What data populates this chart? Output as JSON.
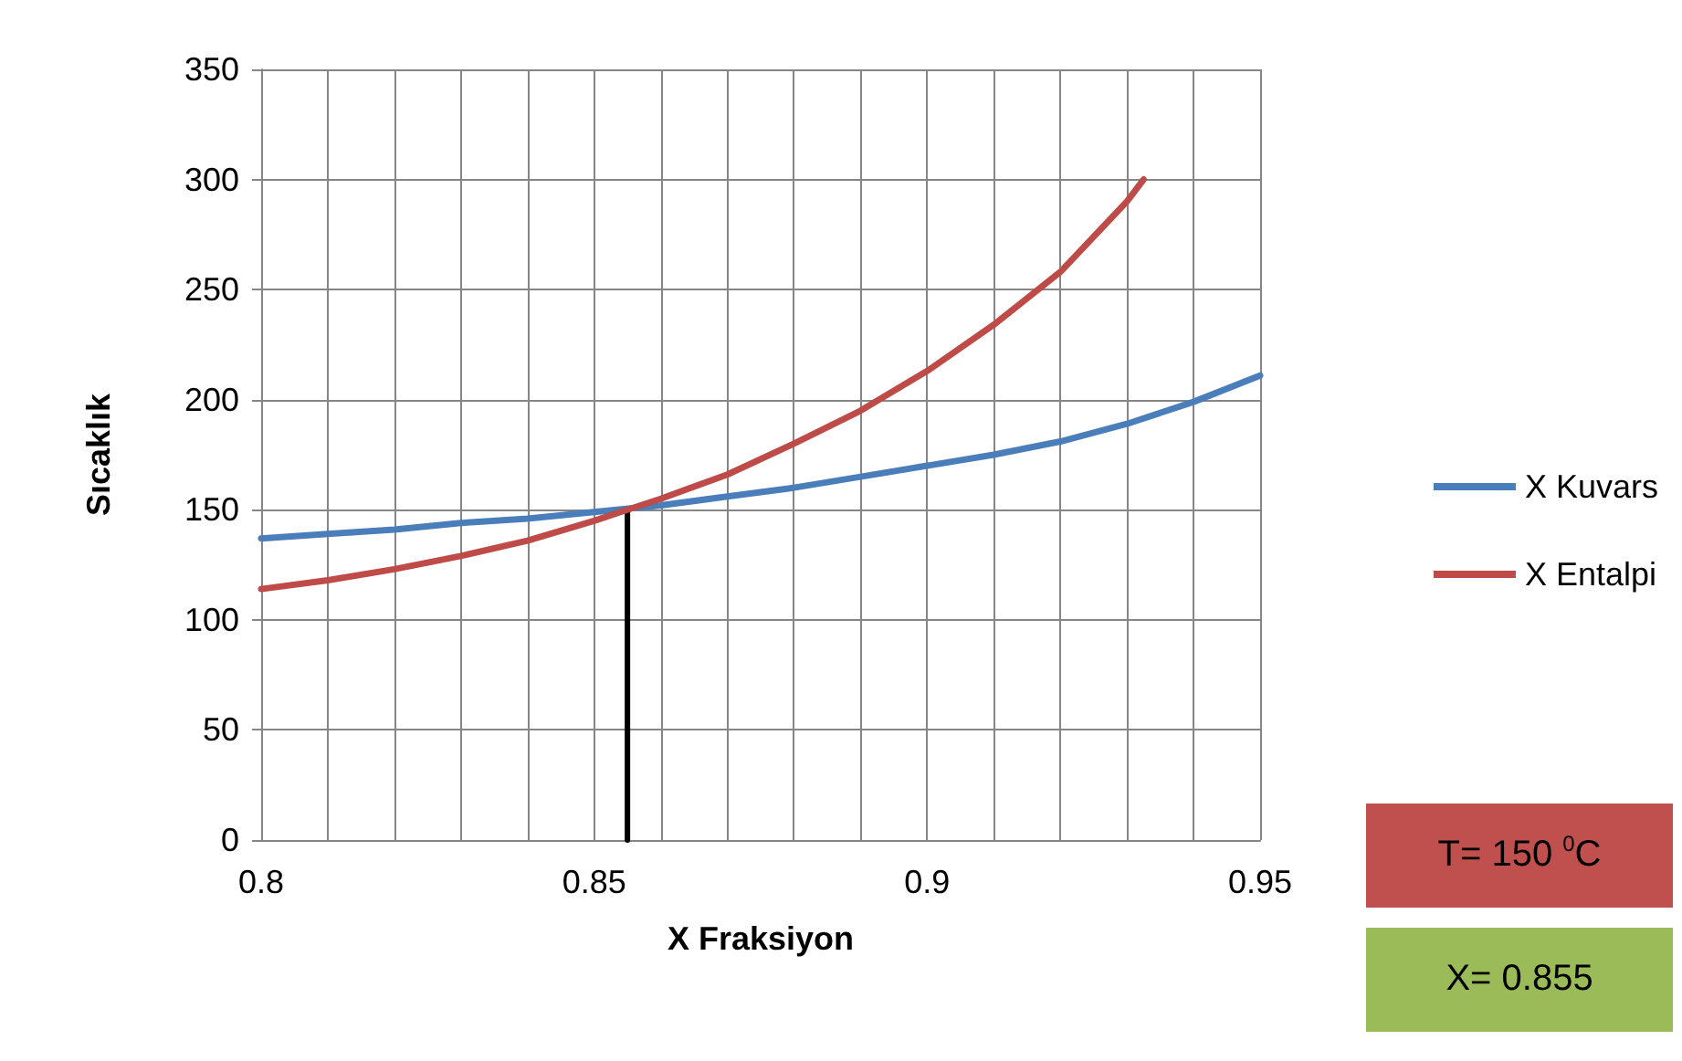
{
  "chart_data": {
    "type": "line",
    "xlabel": "X Fraksiyon",
    "ylabel": "Sıcaklık",
    "series": [
      {
        "name": "X Kuvars",
        "color": "#4a7ebb",
        "x": [
          0.8,
          0.81,
          0.82,
          0.83,
          0.84,
          0.85,
          0.86,
          0.87,
          0.88,
          0.89,
          0.9,
          0.91,
          0.92,
          0.93,
          0.94,
          0.95
        ],
        "values": [
          137,
          139,
          141,
          144,
          146,
          149,
          152,
          156,
          160,
          165,
          170,
          175,
          181,
          189,
          199,
          211
        ]
      },
      {
        "name": "X Entalpi",
        "color": "#be4b48",
        "x": [
          0.8,
          0.81,
          0.82,
          0.83,
          0.84,
          0.85,
          0.855,
          0.86,
          0.87,
          0.88,
          0.89,
          0.9,
          0.91,
          0.92,
          0.93,
          0.9325
        ],
        "values": [
          114,
          118,
          123,
          129,
          136,
          145,
          150,
          155,
          166,
          180,
          195,
          213,
          234,
          258,
          290,
          300
        ]
      },
      {
        "color": "#000000",
        "x": [
          0.855,
          0.855
        ],
        "values": [
          0,
          150
        ]
      }
    ],
    "xlim": [
      0.8,
      0.95
    ],
    "xticks": [
      0.8,
      {
        "value": 0.81,
        "label": null
      },
      {
        "value": 0.82,
        "label": null
      },
      {
        "value": 0.83,
        "label": null
      },
      {
        "value": 0.84,
        "label": null
      },
      0.85,
      {
        "value": 0.86,
        "label": null
      },
      {
        "value": 0.87,
        "label": null
      },
      {
        "value": 0.88,
        "label": null
      },
      {
        "value": 0.89,
        "label": null
      },
      0.9,
      {
        "value": 0.91,
        "label": null
      },
      {
        "value": 0.92,
        "label": null
      },
      {
        "value": 0.93,
        "label": null
      },
      {
        "value": 0.94,
        "label": null
      },
      0.95
    ],
    "ylim": [
      0,
      350
    ],
    "yticks": [
      0,
      50,
      100,
      150,
      200,
      250,
      300,
      350
    ],
    "grid": true,
    "legend": "right",
    "marker": "none",
    "line_style": "solid",
    "annotations": [
      "T= 150 $^{0}$C",
      "X= 0.855"
    ]
  }
}
